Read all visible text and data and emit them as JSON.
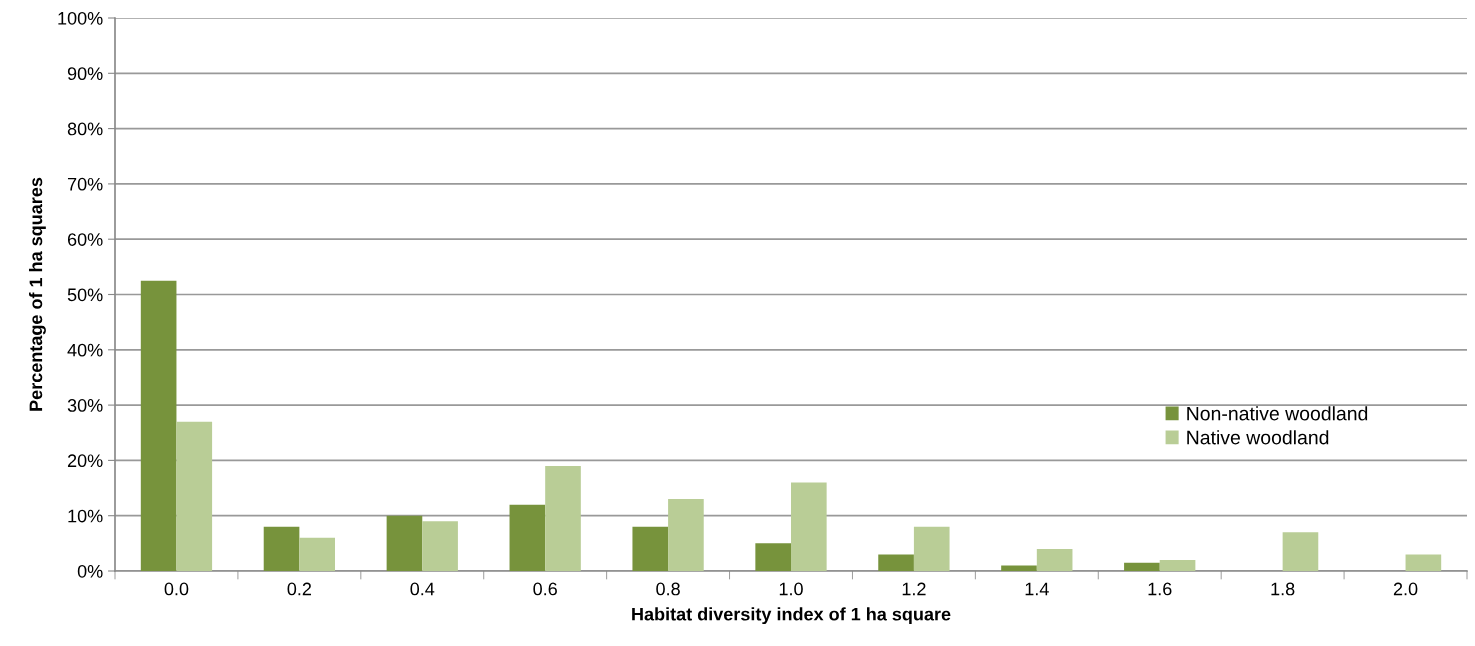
{
  "chart_data": {
    "type": "bar",
    "xlabel": "Habitat diversity index of 1 ha square",
    "ylabel": "Percentage of 1 ha squares",
    "categories": [
      "0.0",
      "0.2",
      "0.4",
      "0.6",
      "0.8",
      "1.0",
      "1.2",
      "1.4",
      "1.6",
      "1.8",
      "2.0"
    ],
    "series": [
      {
        "name": "Non-native woodland",
        "color": "#77933c",
        "values": [
          52.5,
          8,
          10,
          12,
          8,
          5,
          3,
          1,
          1.5,
          0,
          0
        ]
      },
      {
        "name": "Native woodland",
        "color": "#b9cd96",
        "values": [
          27,
          6,
          9,
          19,
          13,
          16,
          8,
          4,
          2,
          7,
          3
        ]
      }
    ],
    "ylim": [
      0,
      100
    ],
    "yticks": [
      {
        "value": 0,
        "label": "0%"
      },
      {
        "value": 10,
        "label": "10%"
      },
      {
        "value": 20,
        "label": "20%"
      },
      {
        "value": 30,
        "label": "30%"
      },
      {
        "value": 40,
        "label": "40%"
      },
      {
        "value": 50,
        "label": "50%"
      },
      {
        "value": 60,
        "label": "60%"
      },
      {
        "value": 70,
        "label": "70%"
      },
      {
        "value": 80,
        "label": "80%"
      },
      {
        "value": 90,
        "label": "90%"
      },
      {
        "value": 100,
        "label": "100%"
      }
    ],
    "grid": "y",
    "legend": "right"
  }
}
